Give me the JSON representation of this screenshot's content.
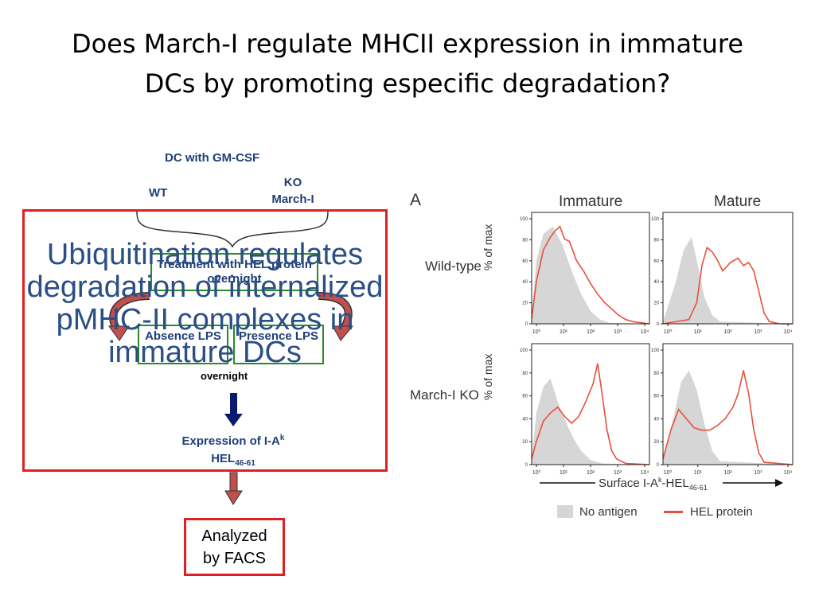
{
  "slide": {
    "title_line1": "Does March-I regulate MHCII expression in immature",
    "title_line2": "DCs by promoting especific degradation?"
  },
  "diagram": {
    "header": "DC with GM-CSF",
    "wt": "WT",
    "ko_line1": "KO",
    "ko_line2": "March-I",
    "treatment": "Treatment with HEL protein overnight",
    "absence": "Absence LPS",
    "presence": "Presence LPS",
    "overnight": "overnight",
    "expression": "Expression of I-A",
    "expression_sup": "k",
    "hel": "HEL",
    "hel_sub": "46-61",
    "analyzed_line1": "Analyzed",
    "analyzed_line2": "by FACS",
    "overlay_text": "Ubiquitination regulates degradation of internalized pMHC-II complexes in immature DCs"
  },
  "figure": {
    "panel_label": "A",
    "col_immature": "Immature",
    "col_mature": "Mature",
    "row_wildtype": "Wild-type",
    "row_marchko": "March-I KO",
    "ylabel": "% of max",
    "y_ticks": [
      "100",
      "80",
      "60",
      "40",
      "20",
      "0"
    ],
    "x_ticks": [
      "10⁰",
      "10¹",
      "10²",
      "10³",
      "10⁴"
    ],
    "xlabel": "Surface I-A",
    "xlabel_sup": "k",
    "xlabel_rest": "-HEL",
    "xlabel_sub": "46-61",
    "legend_no_antigen": "No antigen",
    "legend_hel": "HEL protein",
    "colors": {
      "no_antigen": "#d6d6d6",
      "hel": "#e8503a"
    }
  }
}
